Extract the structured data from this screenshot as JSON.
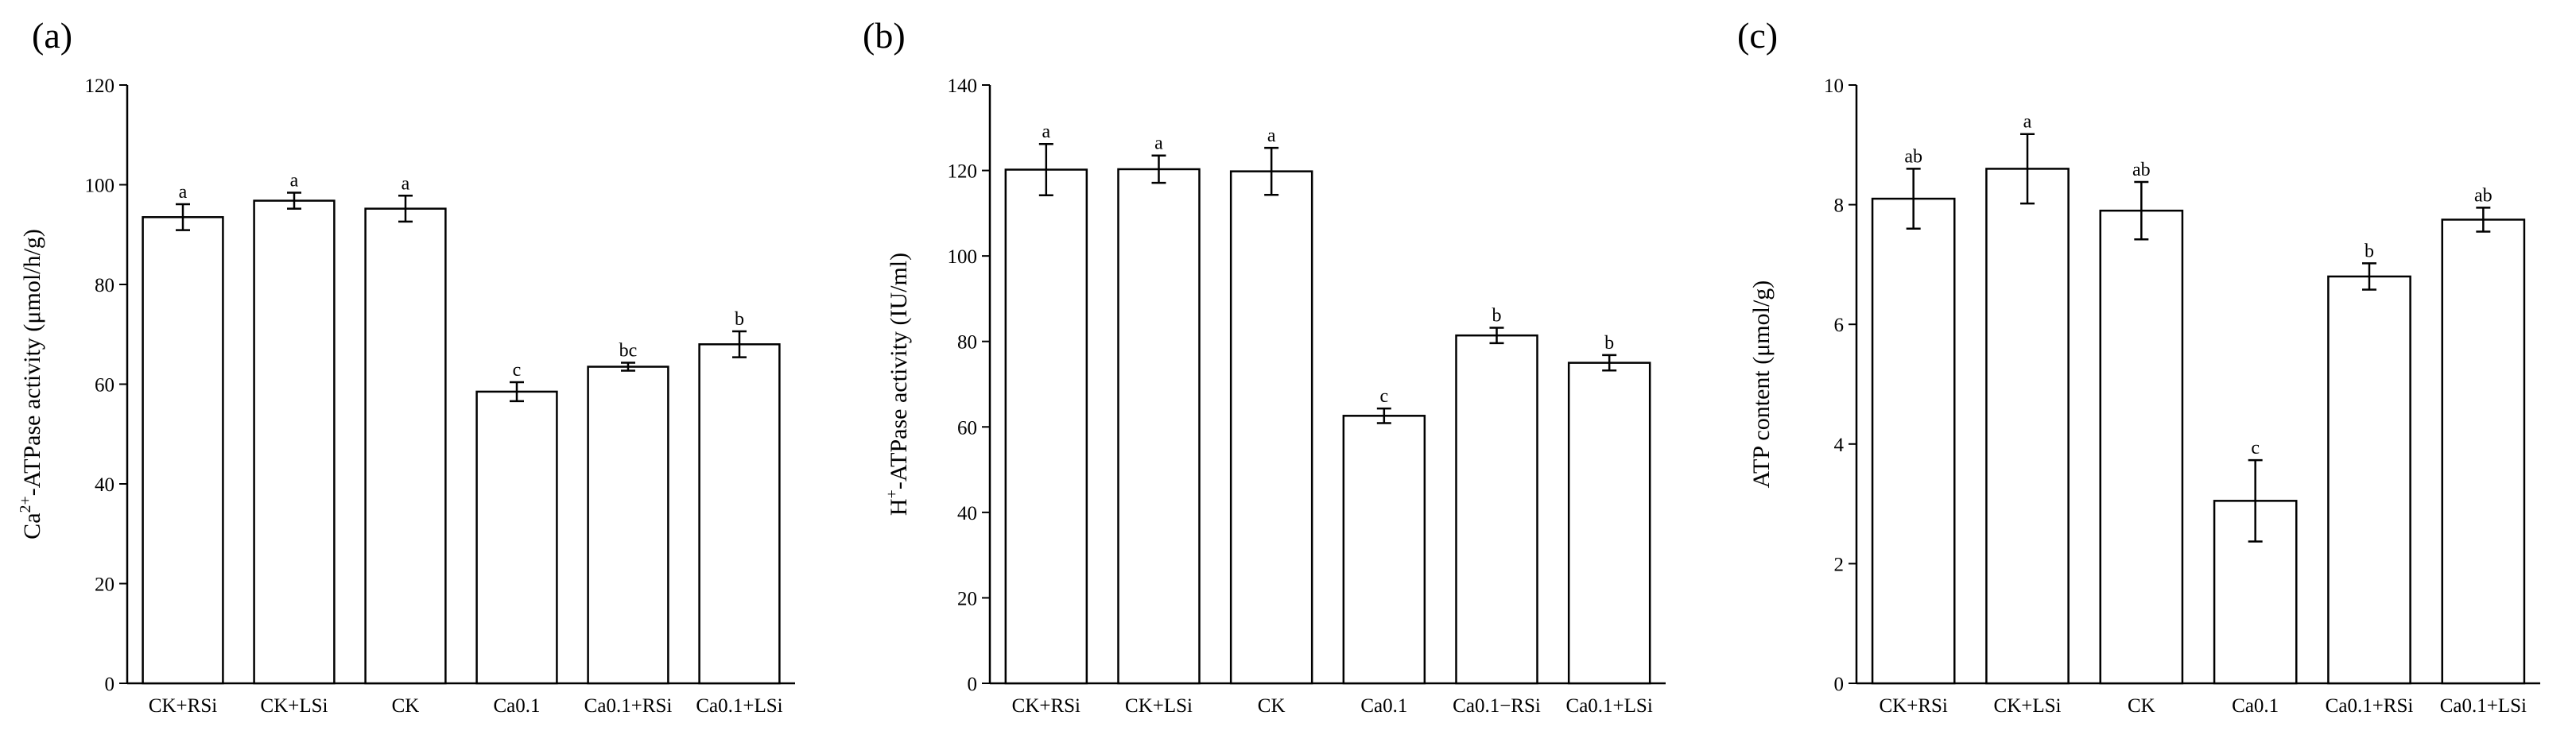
{
  "chart_data": [
    {
      "type": "bar",
      "panel_label": "(a)",
      "ylabel_main": "Ca",
      "ylabel_sup": "2+",
      "ylabel_rest": "-ATPase activity (μmol/h/g)",
      "categories": [
        "CK+RSi",
        "CK+LSi",
        "CK",
        "Ca0.1",
        "Ca0.1+RSi",
        "Ca0.1+LSi"
      ],
      "values": [
        93.5,
        96.8,
        95.2,
        58.5,
        63.5,
        68.0
      ],
      "errors": [
        2.6,
        1.6,
        2.6,
        1.9,
        0.8,
        2.6
      ],
      "significance": [
        "a",
        "a",
        "a",
        "c",
        "bc",
        "b"
      ],
      "ylim": [
        0,
        120
      ],
      "yticks": [
        0,
        20,
        40,
        60,
        80,
        100,
        120
      ],
      "grid": false,
      "bar_fill": "#ffffff",
      "bar_stroke": "#000000"
    },
    {
      "type": "bar",
      "panel_label": "(b)",
      "ylabel_main": "H",
      "ylabel_sup": "+",
      "ylabel_rest": "-ATPase activity (IU/ml)",
      "categories": [
        "CK+RSi",
        "CK+LSi",
        "CK",
        "Ca0.1",
        "Ca0.1−RSi",
        "Ca0.1+LSi"
      ],
      "values": [
        120.2,
        120.3,
        119.8,
        62.6,
        81.4,
        75.0
      ],
      "errors": [
        6.0,
        3.2,
        5.5,
        1.7,
        1.8,
        1.8
      ],
      "significance": [
        "a",
        "a",
        "a",
        "c",
        "b",
        "b"
      ],
      "ylim": [
        0,
        140
      ],
      "yticks": [
        0,
        20,
        40,
        60,
        80,
        100,
        120,
        140
      ],
      "grid": false,
      "bar_fill": "#ffffff",
      "bar_stroke": "#000000"
    },
    {
      "type": "bar",
      "panel_label": "(c)",
      "ylabel_main": "ATP content (μmol/g)",
      "ylabel_sup": "",
      "ylabel_rest": "",
      "categories": [
        "CK+RSi",
        "CK+LSi",
        "CK",
        "Ca0.1",
        "Ca0.1+RSi",
        "Ca0.1+LSi"
      ],
      "values": [
        8.1,
        8.6,
        7.9,
        3.05,
        6.8,
        7.75
      ],
      "errors": [
        0.5,
        0.58,
        0.48,
        0.68,
        0.22,
        0.2
      ],
      "significance": [
        "ab",
        "a",
        "ab",
        "c",
        "b",
        "ab"
      ],
      "ylim": [
        0,
        10
      ],
      "yticks": [
        0,
        2,
        4,
        6,
        8,
        10
      ],
      "grid": false,
      "bar_fill": "#ffffff",
      "bar_stroke": "#000000"
    }
  ]
}
